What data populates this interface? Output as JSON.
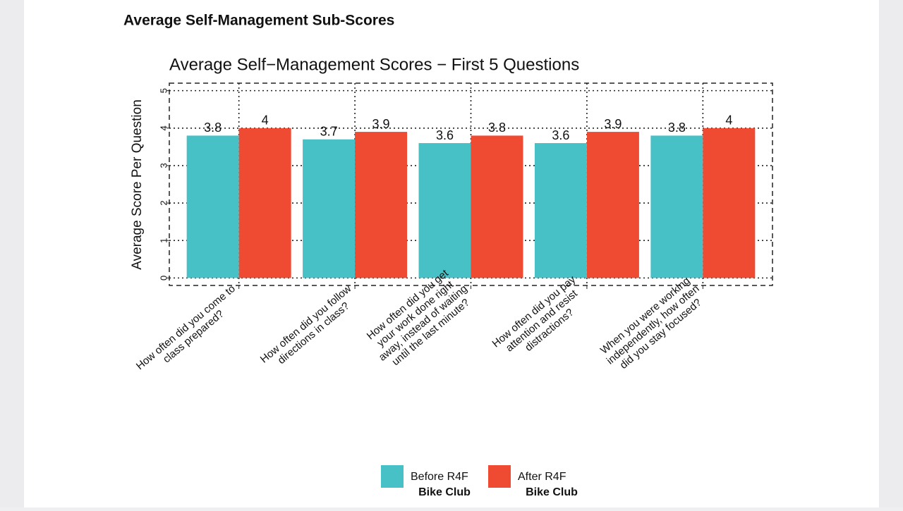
{
  "page_title": "Average Self-Management Sub-Scores",
  "chart_data": {
    "type": "bar",
    "title": "Average Self−Management Scores − First 5 Questions",
    "y_label": "Average Score Per Question",
    "categories": [
      [
        "How often did you come to",
        "class prepared?"
      ],
      [
        "How often did you follow",
        "directions in class?"
      ],
      [
        "How often did you get",
        "your work done right",
        "away, instead of waiting",
        "until the last minute?"
      ],
      [
        "How often did you pay",
        "attention and resist",
        "distractions?"
      ],
      [
        "When you were working",
        "independently, how often",
        "did you stay focused?"
      ]
    ],
    "series": [
      {
        "name": "Before R4F",
        "name_line2": "Bike Club",
        "color": "#48c1c6",
        "values": [
          3.8,
          3.7,
          3.6,
          3.6,
          3.8
        ]
      },
      {
        "name": "After R4F",
        "name_line2": "Bike Club",
        "color": "#ee4b32",
        "values": [
          4,
          3.9,
          3.8,
          3.9,
          4
        ]
      }
    ],
    "ylim": [
      -0.2,
      5.2
    ],
    "yticks": [
      0,
      1,
      2,
      3,
      4,
      5
    ],
    "grid": true,
    "legend": "bottom"
  }
}
